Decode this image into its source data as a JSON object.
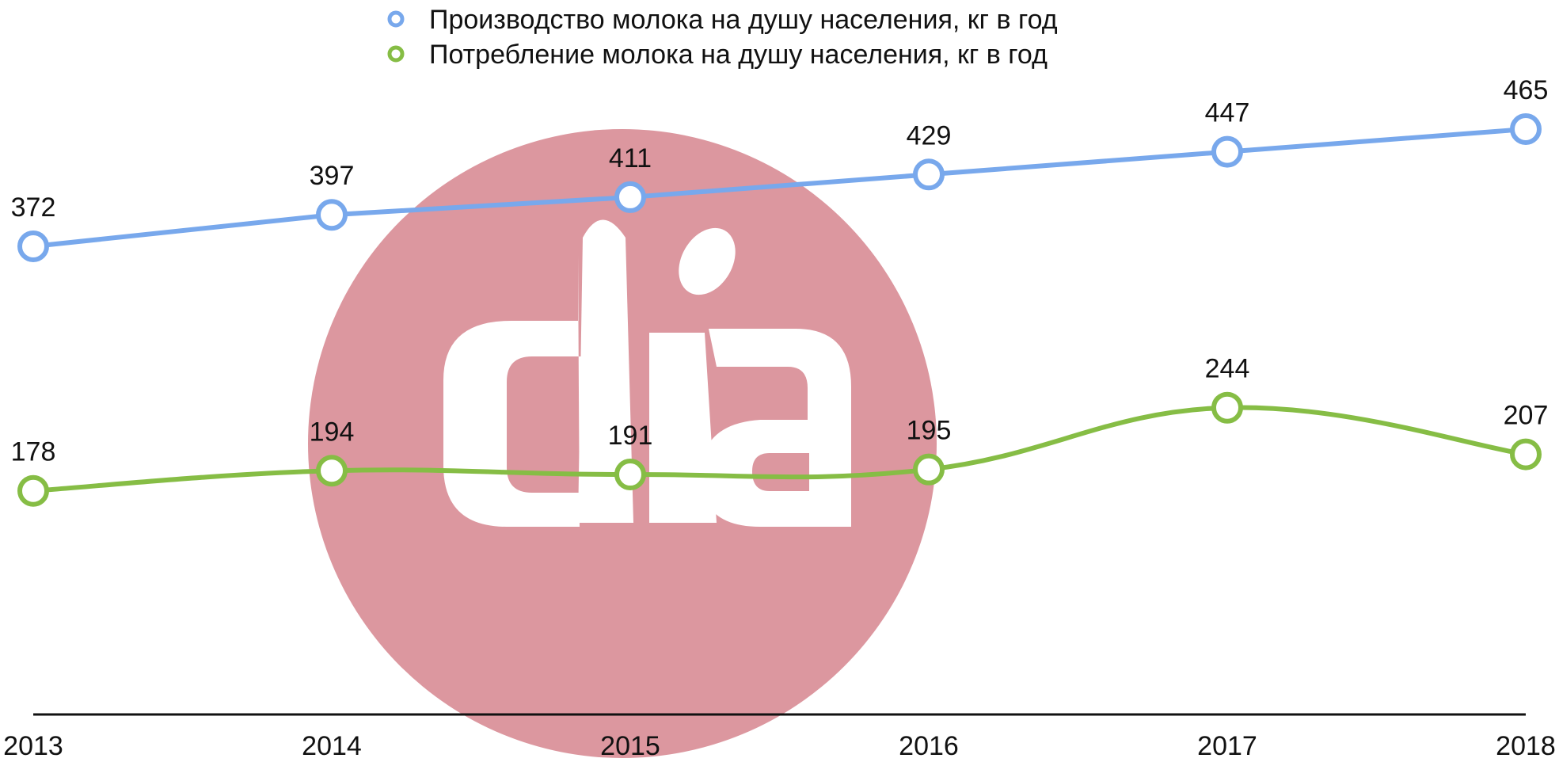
{
  "chart_data": {
    "type": "line",
    "categories": [
      "2013",
      "2014",
      "2015",
      "2016",
      "2017",
      "2018"
    ],
    "series": [
      {
        "name": "Производство молока на душу населения, кг в год",
        "values": [
          372,
          397,
          411,
          429,
          447,
          465
        ],
        "color": "#78a8ec",
        "curve": "straight"
      },
      {
        "name": "Потребление молока на душу населения, кг в год",
        "values": [
          178,
          194,
          191,
          195,
          244,
          207
        ],
        "color": "#86bd45",
        "curve": "smooth"
      }
    ],
    "title": "",
    "xlabel": "",
    "ylabel": "",
    "ylim": [
      0,
      500
    ],
    "legend_position": "top-center",
    "grid": false,
    "data_labels": true
  },
  "watermark": {
    "icon": "dia-logo-icon",
    "circle_color": "#dc979f"
  }
}
